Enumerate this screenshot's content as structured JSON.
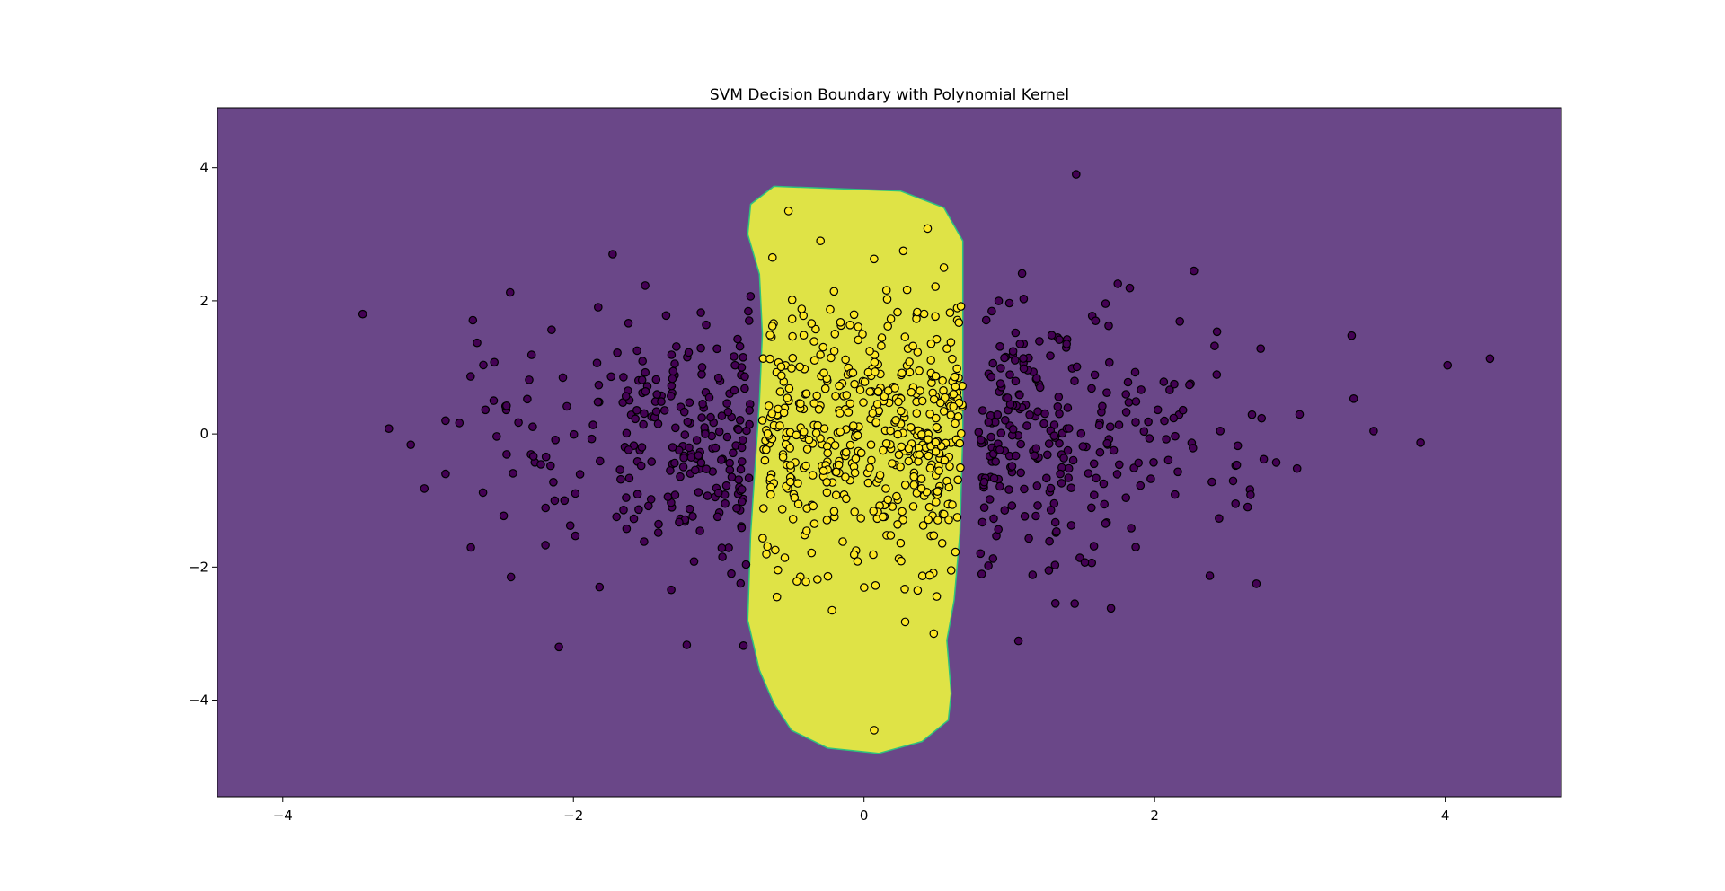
{
  "chart_data": {
    "type": "scatter",
    "title": "SVM Decision Boundary with Polynomial Kernel",
    "xlabel": "",
    "ylabel": "",
    "xlim": [
      -4.45,
      4.8
    ],
    "ylim": [
      -5.45,
      4.9
    ],
    "xticks": [
      -4,
      -2,
      0,
      2,
      4
    ],
    "yticks": [
      -4,
      -2,
      0,
      2,
      4
    ],
    "xtick_labels": [
      "−4",
      "−2",
      "0",
      "2",
      "4"
    ],
    "ytick_labels": [
      "−4",
      "−2",
      "0",
      "2",
      "4"
    ],
    "grid": false,
    "legend": "none",
    "colors": {
      "class_0_region": "#6a4788",
      "class_1_region": "#dfe346",
      "class_0_point": "#440154",
      "class_1_point": "#fde725",
      "point_edge": "#000000",
      "boundary_edge": "#2ec27e"
    },
    "decision_region_class_1": {
      "description_points_in_data_units": [
        [
          -0.62,
          3.72
        ],
        [
          0.25,
          3.65
        ],
        [
          0.55,
          3.4
        ],
        [
          0.68,
          2.9
        ],
        [
          0.68,
          1.5
        ],
        [
          0.68,
          0.0
        ],
        [
          0.66,
          -1.5
        ],
        [
          0.62,
          -2.5
        ],
        [
          0.57,
          -3.1
        ],
        [
          0.6,
          -3.9
        ],
        [
          0.58,
          -4.3
        ],
        [
          0.4,
          -4.62
        ],
        [
          0.1,
          -4.8
        ],
        [
          -0.25,
          -4.72
        ],
        [
          -0.5,
          -4.45
        ],
        [
          -0.62,
          -4.05
        ],
        [
          -0.72,
          -3.55
        ],
        [
          -0.8,
          -2.8
        ],
        [
          -0.78,
          -1.5
        ],
        [
          -0.75,
          -0.5
        ],
        [
          -0.72,
          0.5
        ],
        [
          -0.7,
          1.5
        ],
        [
          -0.72,
          2.4
        ],
        [
          -0.8,
          3.0
        ],
        [
          -0.78,
          3.45
        ]
      ]
    },
    "series": [
      {
        "class": 0,
        "outliers": [
          [
            -3.45,
            1.8
          ],
          [
            -3.27,
            0.08
          ],
          [
            -2.88,
            -0.6
          ],
          [
            -2.48,
            -1.23
          ],
          [
            -2.43,
            -2.15
          ],
          [
            -2.1,
            -3.2
          ],
          [
            -1.73,
            2.7
          ],
          [
            -1.22,
            -3.17
          ],
          [
            1.46,
            3.9
          ],
          [
            2.27,
            2.45
          ],
          [
            2.64,
            -1.1
          ],
          [
            2.7,
            -2.25
          ],
          [
            2.98,
            -0.52
          ],
          [
            3.37,
            0.53
          ],
          [
            3.83,
            -0.13
          ],
          [
            1.7,
            -2.62
          ],
          [
            1.45,
            -2.55
          ],
          [
            -0.83,
            -3.18
          ],
          [
            2.38,
            -2.13
          ],
          [
            -1.82,
            -2.3
          ]
        ],
        "n_points_approx": 520
      },
      {
        "class": 1,
        "outliers": [
          [
            -0.52,
            3.35
          ],
          [
            -0.3,
            2.9
          ],
          [
            0.27,
            2.75
          ],
          [
            0.55,
            2.5
          ],
          [
            -0.63,
            2.65
          ],
          [
            0.07,
            -4.45
          ],
          [
            0.48,
            -3.0
          ],
          [
            -0.22,
            -2.65
          ],
          [
            -0.6,
            -2.45
          ],
          [
            0.28,
            -2.33
          ],
          [
            -0.4,
            -2.22
          ],
          [
            0.6,
            -2.05
          ]
        ],
        "n_points_approx": 480
      }
    ]
  }
}
